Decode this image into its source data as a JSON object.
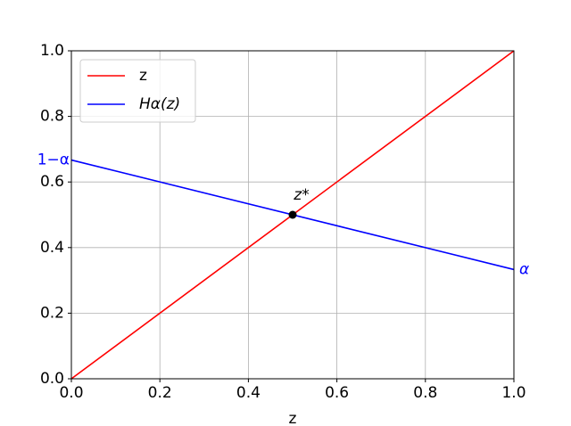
{
  "chart_data": {
    "type": "line",
    "xlabel": "z",
    "x": [
      0,
      1
    ],
    "series": [
      {
        "name": "z",
        "color": "#ff0000",
        "values": [
          0,
          1
        ]
      },
      {
        "name": "Hα(z)",
        "color": "#0000ff",
        "values": [
          0.667,
          0.333
        ]
      }
    ],
    "point": {
      "x": 0.5,
      "y": 0.5,
      "label": "z*",
      "color": "#000000"
    },
    "left_label": "1−α",
    "right_label": "α",
    "annotation_color": "#0000ff",
    "xlim": [
      0,
      1
    ],
    "ylim": [
      0,
      1
    ],
    "xticks": [
      {
        "value": 0,
        "label": "0.0"
      },
      0.2,
      0.4,
      0.6,
      0.8,
      {
        "value": 1,
        "label": "1.0"
      }
    ],
    "yticks": [
      {
        "value": 0,
        "label": "0.0"
      },
      0.2,
      0.4,
      0.6,
      0.8,
      {
        "value": 1,
        "label": "1.0"
      }
    ],
    "grid": true,
    "legend": "upper left"
  }
}
